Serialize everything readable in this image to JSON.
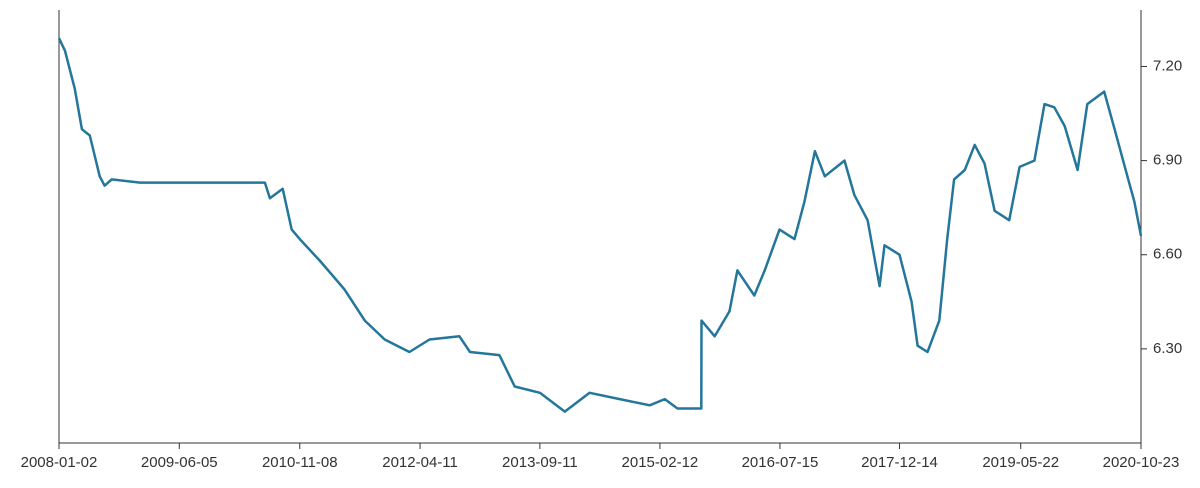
{
  "chart_data": {
    "type": "line",
    "x": [
      "2008-01-02",
      "2008-01-28",
      "2008-03-10",
      "2008-04-10",
      "2008-05-14",
      "2008-06-26",
      "2008-07-17",
      "2008-08-17",
      "2008-12-17",
      "2009-05-25",
      "2009-09-02",
      "2010-06-10",
      "2010-07-02",
      "2010-08-26",
      "2010-10-04",
      "2010-11-08",
      "2011-02-04",
      "2011-05-20",
      "2011-08-16",
      "2011-11-10",
      "2012-02-25",
      "2012-05-22",
      "2012-09-28",
      "2012-11-13",
      "2013-03-20",
      "2013-05-25",
      "2013-09-11",
      "2013-12-28",
      "2014-04-14",
      "2014-08-22",
      "2014-12-30",
      "2015-03-05",
      "2015-04-29",
      "2015-08-10",
      "2015-08-11",
      "2015-10-07",
      "2015-12-10",
      "2016-01-13",
      "2016-03-26",
      "2016-05-10",
      "2016-07-13",
      "2016-09-16",
      "2016-10-29",
      "2016-12-13",
      "2017-01-25",
      "2017-04-20",
      "2017-06-02",
      "2017-07-29",
      "2017-09-19",
      "2017-10-10",
      "2017-12-14",
      "2018-02-04",
      "2018-03-02",
      "2018-04-14",
      "2018-06-04",
      "2018-07-08",
      "2018-08-07",
      "2018-09-22",
      "2018-11-04",
      "2018-12-17",
      "2019-01-29",
      "2019-04-02",
      "2019-05-17",
      "2019-07-20",
      "2019-09-02",
      "2019-10-14",
      "2019-11-28",
      "2020-01-23",
      "2020-03-05",
      "2020-05-17",
      "2020-07-01",
      "2020-08-25",
      "2020-09-24",
      "2020-10-23"
    ],
    "series": [
      {
        "color": "#24769b",
        "values": [
          7.29,
          7.25,
          7.13,
          7.0,
          6.98,
          6.85,
          6.82,
          6.84,
          6.83,
          6.83,
          6.83,
          6.83,
          6.78,
          6.81,
          6.68,
          6.65,
          6.58,
          6.49,
          6.39,
          6.33,
          6.29,
          6.33,
          6.34,
          6.29,
          6.28,
          6.18,
          6.16,
          6.1,
          6.16,
          6.14,
          6.12,
          6.14,
          6.11,
          6.11,
          6.39,
          6.34,
          6.42,
          6.55,
          6.47,
          6.55,
          6.68,
          6.65,
          6.77,
          6.93,
          6.85,
          6.9,
          6.79,
          6.71,
          6.5,
          6.63,
          6.6,
          6.45,
          6.31,
          6.29,
          6.39,
          6.65,
          6.84,
          6.87,
          6.95,
          6.89,
          6.74,
          6.71,
          6.88,
          6.9,
          7.08,
          7.07,
          7.01,
          6.87,
          7.08,
          7.12,
          7.0,
          6.85,
          6.77,
          6.66
        ]
      }
    ],
    "xlim": [
      "2008-01-02",
      "2020-10-23"
    ],
    "xticks": [
      "2008-01-02",
      "2009-06-05",
      "2010-11-08",
      "2012-04-11",
      "2013-09-11",
      "2015-02-12",
      "2016-07-15",
      "2017-12-14",
      "2019-05-22",
      "2020-10-23"
    ],
    "ylim": [
      6.0,
      7.38
    ],
    "yticks": [
      {
        "value": 6.3,
        "label": "6.30"
      },
      {
        "value": 6.6,
        "label": "6.60"
      },
      {
        "value": 6.9,
        "label": "6.90"
      },
      {
        "value": 7.2,
        "label": "7.20"
      }
    ]
  }
}
